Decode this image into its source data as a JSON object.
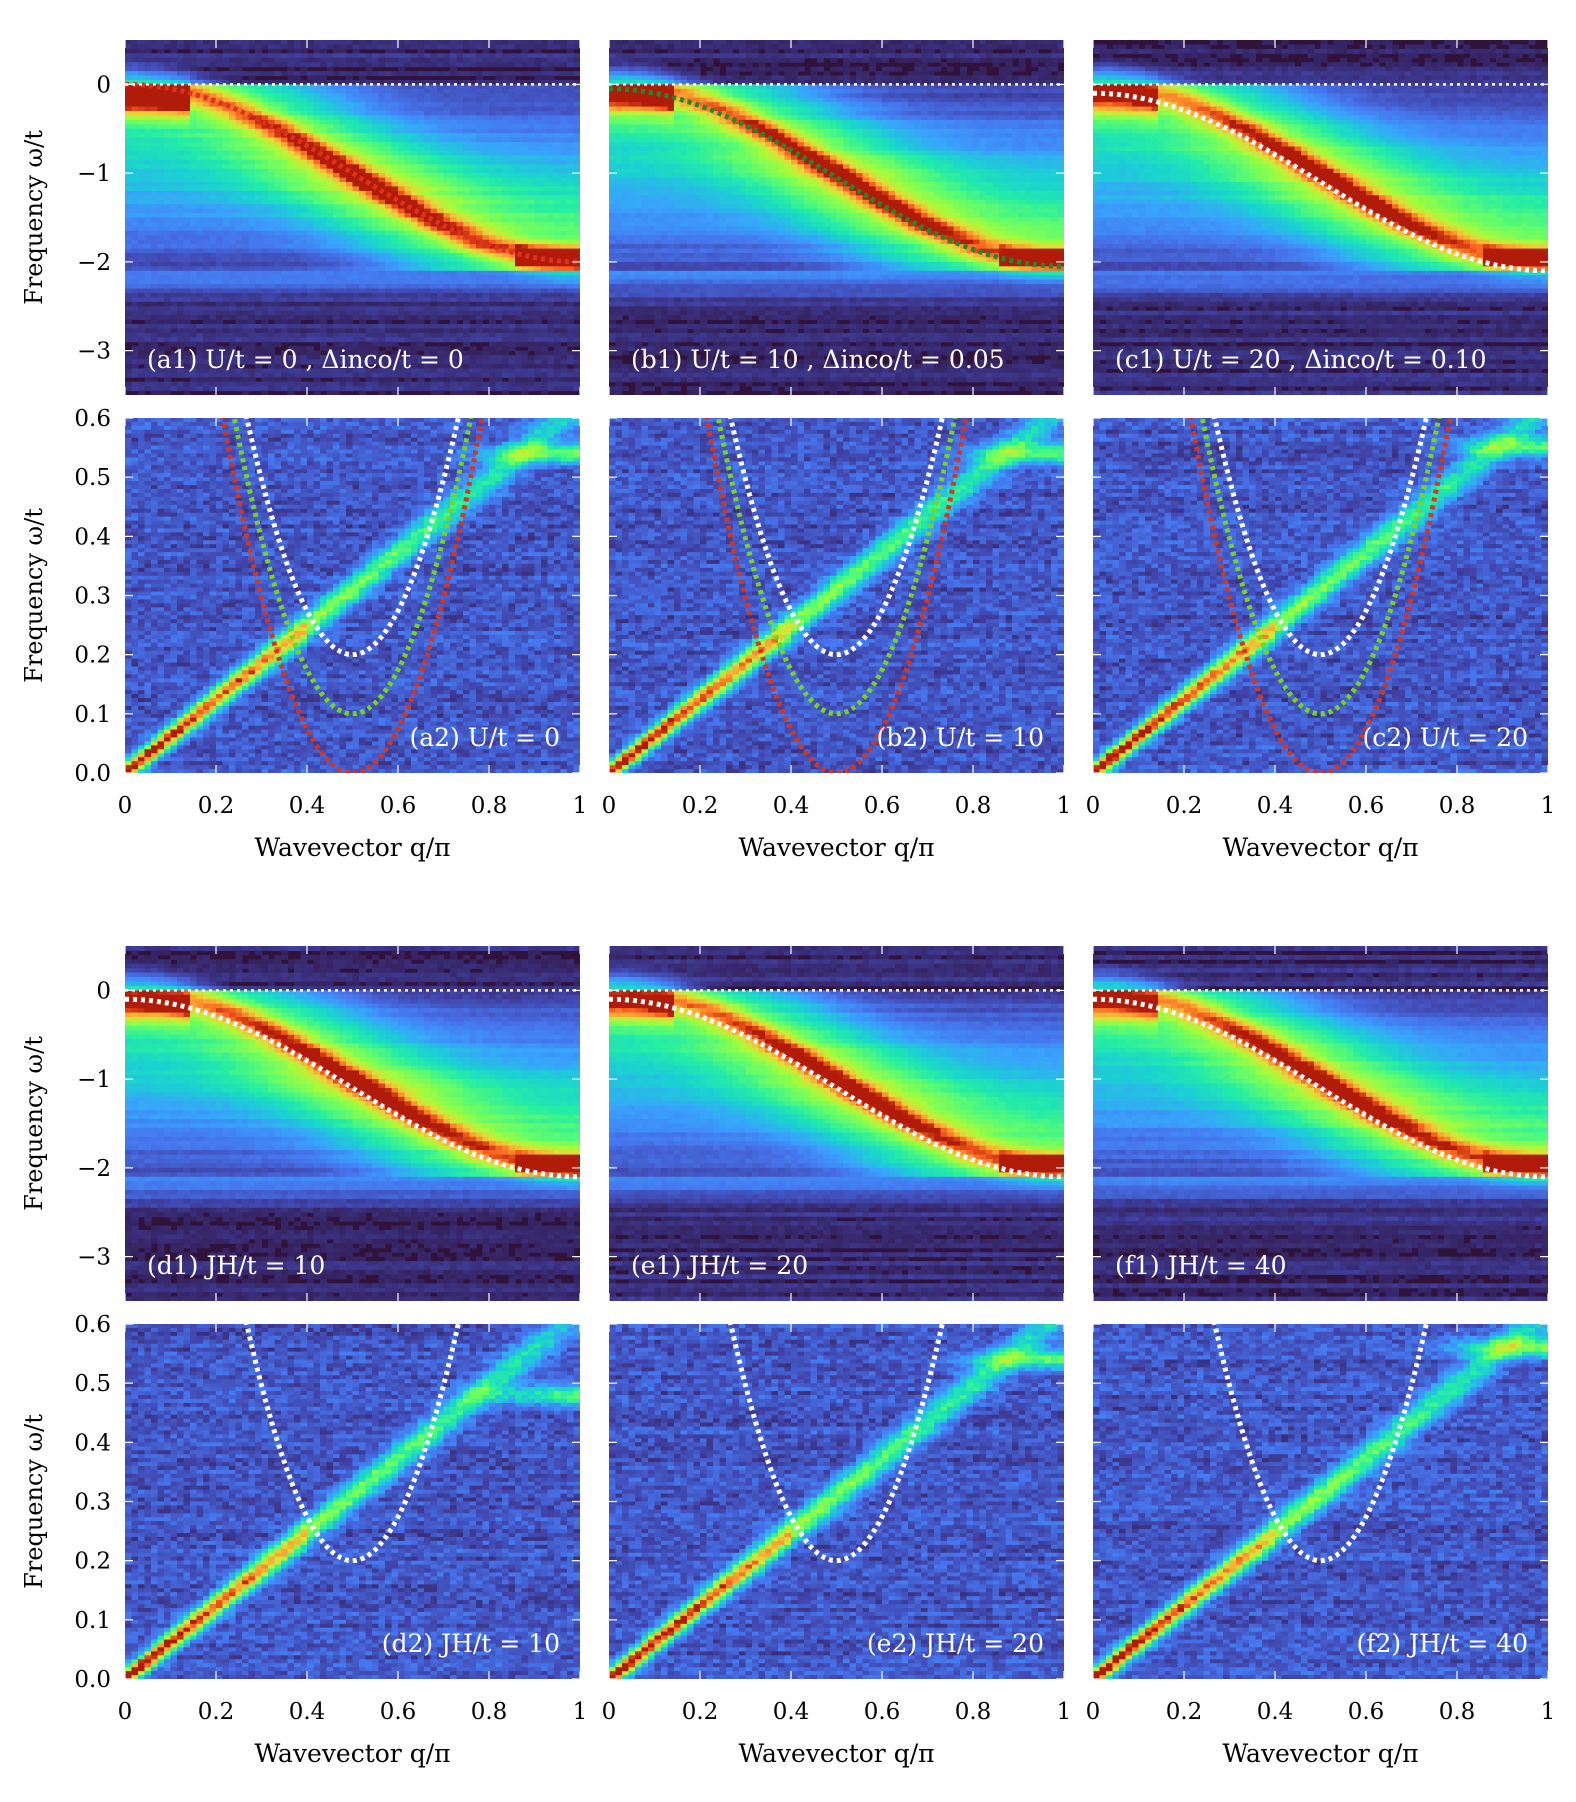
{
  "chart_data": [
    {
      "id": "a1",
      "type": "heatmap",
      "label": "(a1) U/t = 0 , Δinco/t = 0",
      "ylabel": "Frequency ω/t",
      "xlabel": "",
      "xlim": [
        0,
        1
      ],
      "ylim": [
        -3.5,
        0.5
      ],
      "xticks": [
        "0",
        "0.2",
        "0.4",
        "0.6",
        "0.8",
        "1"
      ],
      "yticks": [
        {
          "v": 0,
          "t": "0"
        },
        {
          "v": -1,
          "t": "−1"
        },
        {
          "v": -2,
          "t": "−2"
        },
        {
          "v": -3,
          "t": "−3"
        }
      ],
      "curves": [
        {
          "kind": "band",
          "color": "#e0301e",
          "gap": 0
        }
      ],
      "fermi_line": 0,
      "peak_kind": "dense"
    },
    {
      "id": "b1",
      "type": "heatmap",
      "label": "(b1) U/t = 10 , Δinco/t = 0.05",
      "ylabel": "",
      "xlabel": "",
      "xlim": [
        0,
        1
      ],
      "ylim": [
        -3.5,
        0.5
      ],
      "xticks": [
        "0",
        "0.2",
        "0.4",
        "0.6",
        "0.8",
        "1"
      ],
      "yticks": [],
      "curves": [
        {
          "kind": "band",
          "color": "#1f8a2a",
          "gap": 0.05
        }
      ],
      "fermi_line": 0,
      "peak_kind": "band"
    },
    {
      "id": "c1",
      "type": "heatmap",
      "label": "(c1) U/t = 20 , Δinco/t = 0.10",
      "ylabel": "",
      "xlabel": "",
      "xlim": [
        0,
        1
      ],
      "ylim": [
        -3.5,
        0.5
      ],
      "xticks": [
        "0",
        "0.2",
        "0.4",
        "0.6",
        "0.8",
        "1"
      ],
      "yticks": [],
      "curves": [
        {
          "kind": "band",
          "color": "#ffffff",
          "gap": 0.1
        }
      ],
      "fermi_line": 0,
      "peak_kind": "band"
    },
    {
      "id": "a2",
      "type": "heatmap",
      "label": "(a2) U/t = 0",
      "ylabel": "Frequency ω/t",
      "xlabel": "Wavevector q/π",
      "xlim": [
        0,
        1
      ],
      "ylim": [
        0,
        0.6
      ],
      "xticks": [
        "0",
        "0.2",
        "0.4",
        "0.6",
        "0.8",
        "1"
      ],
      "yticks": [
        {
          "v": 0,
          "t": "0.0"
        },
        {
          "v": 0.1,
          "t": "0.1"
        },
        {
          "v": 0.2,
          "t": "0.2"
        },
        {
          "v": 0.3,
          "t": "0.3"
        },
        {
          "v": 0.4,
          "t": "0.4"
        },
        {
          "v": 0.5,
          "t": "0.5"
        },
        {
          "v": 0.6,
          "t": "0.6"
        }
      ],
      "curves": [
        {
          "kind": "parabola",
          "color": "#ffffff",
          "gap": 0.2
        },
        {
          "kind": "parabola",
          "color": "#7ad31f",
          "gap": 0.1
        },
        {
          "kind": "parabola",
          "color": "#d8361c",
          "gap": 0.0
        }
      ],
      "peak_kind": "magnon",
      "magnon_slope": 0.62,
      "top_band": 0.54
    },
    {
      "id": "b2",
      "type": "heatmap",
      "label": "(b2) U/t = 10",
      "ylabel": "",
      "xlabel": "Wavevector q/π",
      "xlim": [
        0,
        1
      ],
      "ylim": [
        0,
        0.6
      ],
      "xticks": [
        "0",
        "0.2",
        "0.4",
        "0.6",
        "0.8",
        "1"
      ],
      "yticks": [],
      "curves": [
        {
          "kind": "parabola",
          "color": "#ffffff",
          "gap": 0.2
        },
        {
          "kind": "parabola",
          "color": "#7ad31f",
          "gap": 0.1
        },
        {
          "kind": "parabola",
          "color": "#d8361c",
          "gap": 0.0
        }
      ],
      "peak_kind": "magnon",
      "magnon_slope": 0.62,
      "top_band": 0.54
    },
    {
      "id": "c2",
      "type": "heatmap",
      "label": "(c2) U/t = 20",
      "ylabel": "",
      "xlabel": "Wavevector q/π",
      "xlim": [
        0,
        1
      ],
      "ylim": [
        0,
        0.6
      ],
      "xticks": [
        "0",
        "0.2",
        "0.4",
        "0.6",
        "0.8",
        "1"
      ],
      "yticks": [],
      "curves": [
        {
          "kind": "parabola",
          "color": "#ffffff",
          "gap": 0.2
        },
        {
          "kind": "parabola",
          "color": "#7ad31f",
          "gap": 0.1
        },
        {
          "kind": "parabola",
          "color": "#d8361c",
          "gap": 0.0
        }
      ],
      "peak_kind": "magnon",
      "magnon_slope": 0.62,
      "top_band": 0.55
    },
    {
      "id": "d1",
      "type": "heatmap",
      "label": "(d1) JH/t = 10",
      "ylabel": "Frequency ω/t",
      "xlabel": "",
      "xlim": [
        0,
        1
      ],
      "ylim": [
        -3.5,
        0.5
      ],
      "xticks": [
        "0",
        "0.2",
        "0.4",
        "0.6",
        "0.8",
        "1"
      ],
      "yticks": [
        {
          "v": 0,
          "t": "0"
        },
        {
          "v": -1,
          "t": "−1"
        },
        {
          "v": -2,
          "t": "−2"
        },
        {
          "v": -3,
          "t": "−3"
        }
      ],
      "curves": [
        {
          "kind": "band",
          "color": "#ffffff",
          "gap": 0.1
        }
      ],
      "fermi_line": 0,
      "peak_kind": "band"
    },
    {
      "id": "e1",
      "type": "heatmap",
      "label": "(e1) JH/t = 20",
      "ylabel": "",
      "xlabel": "",
      "xlim": [
        0,
        1
      ],
      "ylim": [
        -3.5,
        0.5
      ],
      "xticks": [
        "0",
        "0.2",
        "0.4",
        "0.6",
        "0.8",
        "1"
      ],
      "yticks": [],
      "curves": [
        {
          "kind": "band",
          "color": "#ffffff",
          "gap": 0.1
        }
      ],
      "fermi_line": 0,
      "peak_kind": "band"
    },
    {
      "id": "f1",
      "type": "heatmap",
      "label": "(f1) JH/t = 40",
      "ylabel": "",
      "xlabel": "",
      "xlim": [
        0,
        1
      ],
      "ylim": [
        -3.5,
        0.5
      ],
      "xticks": [
        "0",
        "0.2",
        "0.4",
        "0.6",
        "0.8",
        "1"
      ],
      "yticks": [],
      "curves": [
        {
          "kind": "band",
          "color": "#ffffff",
          "gap": 0.1
        }
      ],
      "fermi_line": 0,
      "peak_kind": "band"
    },
    {
      "id": "d2",
      "type": "heatmap",
      "label": "(d2) JH/t = 10",
      "ylabel": "Frequency ω/t",
      "xlabel": "Wavevector q/π",
      "xlim": [
        0,
        1
      ],
      "ylim": [
        0,
        0.6
      ],
      "xticks": [
        "0",
        "0.2",
        "0.4",
        "0.6",
        "0.8",
        "1"
      ],
      "yticks": [
        {
          "v": 0,
          "t": "0.0"
        },
        {
          "v": 0.1,
          "t": "0.1"
        },
        {
          "v": 0.2,
          "t": "0.2"
        },
        {
          "v": 0.3,
          "t": "0.3"
        },
        {
          "v": 0.4,
          "t": "0.4"
        },
        {
          "v": 0.5,
          "t": "0.5"
        },
        {
          "v": 0.6,
          "t": "0.6"
        }
      ],
      "curves": [
        {
          "kind": "parabola",
          "color": "#ffffff",
          "gap": 0.2
        }
      ],
      "peak_kind": "magnon",
      "magnon_slope": 0.62,
      "top_band": 0.48
    },
    {
      "id": "e2",
      "type": "heatmap",
      "label": "(e2) JH/t = 20",
      "ylabel": "",
      "xlabel": "Wavevector q/π",
      "xlim": [
        0,
        1
      ],
      "ylim": [
        0,
        0.6
      ],
      "xticks": [
        "0",
        "0.2",
        "0.4",
        "0.6",
        "0.8",
        "1"
      ],
      "yticks": [],
      "curves": [
        {
          "kind": "parabola",
          "color": "#ffffff",
          "gap": 0.2
        }
      ],
      "peak_kind": "magnon",
      "magnon_slope": 0.62,
      "top_band": 0.54
    },
    {
      "id": "f2",
      "type": "heatmap",
      "label": "(f2) JH/t = 40",
      "ylabel": "",
      "xlabel": "Wavevector q/π",
      "xlim": [
        0,
        1
      ],
      "ylim": [
        0,
        0.6
      ],
      "xticks": [
        "0",
        "0.2",
        "0.4",
        "0.6",
        "0.8",
        "1"
      ],
      "yticks": [],
      "curves": [
        {
          "kind": "parabola",
          "color": "#ffffff",
          "gap": 0.2
        }
      ],
      "peak_kind": "magnon",
      "magnon_slope": 0.62,
      "top_band": 0.56
    }
  ]
}
